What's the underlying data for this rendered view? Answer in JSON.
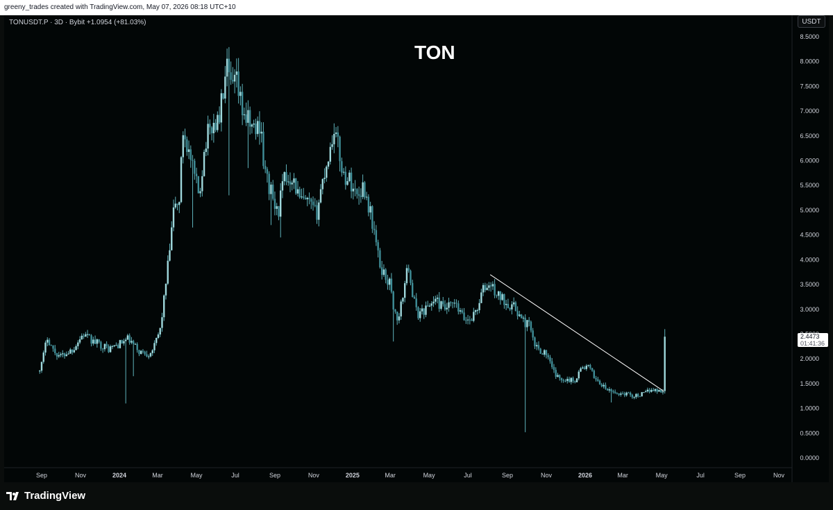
{
  "header": {
    "credit": "greeny_trades created with TradingView.com, May 07, 2026 08:18 UTC+10"
  },
  "symbol_info": "TONUSDT.P · 3D · Bybit  +1.0954 (+81.03%)",
  "currency_button": "USDT",
  "last_price": {
    "price": "2.4473",
    "countdown": "01:41:36"
  },
  "brand": {
    "name": "TradingView"
  },
  "colors": {
    "background": "#020606",
    "candle": "#9fd8dc",
    "wick": "#5fb3bb",
    "trendline": "#ffffff",
    "text": "#d1d4dc"
  },
  "chart_data": {
    "type": "candlestick",
    "title": "TON",
    "x_ticks": [
      "Sep",
      "Nov",
      "2024",
      "Mar",
      "May",
      "Jul",
      "Sep",
      "Nov",
      "2025",
      "Mar",
      "May",
      "Jul",
      "Sep",
      "Nov",
      "2026",
      "Mar",
      "May",
      "Jul",
      "Sep",
      "Nov"
    ],
    "y_ticks": [
      "0.0000",
      "0.5000",
      "1.0000",
      "1.5000",
      "2.0000",
      "2.5000",
      "3.0000",
      "3.5000",
      "4.0000",
      "4.5000",
      "5.0000",
      "5.5000",
      "6.0000",
      "6.5000",
      "7.0000",
      "7.5000",
      "8.0000",
      "8.5000"
    ],
    "ylim": [
      0,
      8.6
    ],
    "anchors": [
      {
        "date": "2023-08-26",
        "price": 1.75
      },
      {
        "date": "2023-09-01",
        "price": 1.9
      },
      {
        "date": "2023-09-10",
        "price": 2.45
      },
      {
        "date": "2023-09-20",
        "price": 2.15
      },
      {
        "date": "2023-10-01",
        "price": 2.05
      },
      {
        "date": "2023-10-20",
        "price": 2.2
      },
      {
        "date": "2023-11-05",
        "price": 2.5
      },
      {
        "date": "2023-11-20",
        "price": 2.35
      },
      {
        "date": "2023-12-01",
        "price": 2.3
      },
      {
        "date": "2023-12-15",
        "price": 2.2
      },
      {
        "date": "2024-01-01",
        "price": 2.3
      },
      {
        "date": "2024-01-15",
        "price": 2.4
      },
      {
        "date": "2024-02-01",
        "price": 2.15
      },
      {
        "date": "2024-02-15",
        "price": 2.1
      },
      {
        "date": "2024-02-25",
        "price": 2.25
      },
      {
        "date": "2024-03-05",
        "price": 2.6
      },
      {
        "date": "2024-03-12",
        "price": 3.3
      },
      {
        "date": "2024-03-20",
        "price": 4.2
      },
      {
        "date": "2024-03-28",
        "price": 5.2
      },
      {
        "date": "2024-04-03",
        "price": 5.0
      },
      {
        "date": "2024-04-10",
        "price": 6.6
      },
      {
        "date": "2024-04-15",
        "price": 6.4
      },
      {
        "date": "2024-04-25",
        "price": 5.8
      },
      {
        "date": "2024-05-05",
        "price": 5.3
      },
      {
        "date": "2024-05-15",
        "price": 6.4
      },
      {
        "date": "2024-05-25",
        "price": 6.7
      },
      {
        "date": "2024-06-05",
        "price": 6.8
      },
      {
        "date": "2024-06-12",
        "price": 7.4
      },
      {
        "date": "2024-06-18",
        "price": 7.8
      },
      {
        "date": "2024-06-25",
        "price": 7.4
      },
      {
        "date": "2024-07-02",
        "price": 7.6
      },
      {
        "date": "2024-07-10",
        "price": 7.1
      },
      {
        "date": "2024-07-20",
        "price": 6.8
      },
      {
        "date": "2024-08-01",
        "price": 6.6
      },
      {
        "date": "2024-08-10",
        "price": 6.8
      },
      {
        "date": "2024-08-15",
        "price": 5.8
      },
      {
        "date": "2024-08-25",
        "price": 5.4
      },
      {
        "date": "2024-09-05",
        "price": 4.9
      },
      {
        "date": "2024-09-15",
        "price": 5.6
      },
      {
        "date": "2024-09-28",
        "price": 5.7
      },
      {
        "date": "2024-10-10",
        "price": 5.2
      },
      {
        "date": "2024-10-25",
        "price": 5.1
      },
      {
        "date": "2024-11-05",
        "price": 4.9
      },
      {
        "date": "2024-11-12",
        "price": 5.4
      },
      {
        "date": "2024-11-20",
        "price": 5.9
      },
      {
        "date": "2024-11-28",
        "price": 6.3
      },
      {
        "date": "2024-12-03",
        "price": 6.7
      },
      {
        "date": "2024-12-10",
        "price": 6.2
      },
      {
        "date": "2024-12-18",
        "price": 5.7
      },
      {
        "date": "2024-12-28",
        "price": 5.6
      },
      {
        "date": "2025-01-08",
        "price": 5.3
      },
      {
        "date": "2025-01-18",
        "price": 5.5
      },
      {
        "date": "2025-01-28",
        "price": 5.0
      },
      {
        "date": "2025-02-05",
        "price": 4.5
      },
      {
        "date": "2025-02-12",
        "price": 3.9
      },
      {
        "date": "2025-02-20",
        "price": 3.7
      },
      {
        "date": "2025-03-01",
        "price": 3.5
      },
      {
        "date": "2025-03-08",
        "price": 2.9
      },
      {
        "date": "2025-03-15",
        "price": 2.8
      },
      {
        "date": "2025-03-22",
        "price": 3.4
      },
      {
        "date": "2025-03-30",
        "price": 3.9
      },
      {
        "date": "2025-04-05",
        "price": 3.3
      },
      {
        "date": "2025-04-12",
        "price": 2.9
      },
      {
        "date": "2025-04-25",
        "price": 3.0
      },
      {
        "date": "2025-05-10",
        "price": 3.2
      },
      {
        "date": "2025-05-25",
        "price": 3.0
      },
      {
        "date": "2025-06-10",
        "price": 3.1
      },
      {
        "date": "2025-06-25",
        "price": 2.8
      },
      {
        "date": "2025-07-05",
        "price": 2.8
      },
      {
        "date": "2025-07-15",
        "price": 3.0
      },
      {
        "date": "2025-07-25",
        "price": 3.4
      },
      {
        "date": "2025-08-05",
        "price": 3.5
      },
      {
        "date": "2025-08-15",
        "price": 3.3
      },
      {
        "date": "2025-08-25",
        "price": 3.2
      },
      {
        "date": "2025-09-05",
        "price": 3.1
      },
      {
        "date": "2025-09-15",
        "price": 3.0
      },
      {
        "date": "2025-09-25",
        "price": 2.75
      },
      {
        "date": "2025-10-05",
        "price": 2.7
      },
      {
        "date": "2025-10-12",
        "price": 2.3
      },
      {
        "date": "2025-10-20",
        "price": 2.2
      },
      {
        "date": "2025-11-01",
        "price": 2.1
      },
      {
        "date": "2025-11-10",
        "price": 1.8
      },
      {
        "date": "2025-11-20",
        "price": 1.6
      },
      {
        "date": "2025-12-01",
        "price": 1.6
      },
      {
        "date": "2025-12-15",
        "price": 1.55
      },
      {
        "date": "2025-12-25",
        "price": 1.8
      },
      {
        "date": "2026-01-05",
        "price": 1.85
      },
      {
        "date": "2026-01-15",
        "price": 1.65
      },
      {
        "date": "2026-01-28",
        "price": 1.45
      },
      {
        "date": "2026-02-08",
        "price": 1.35
      },
      {
        "date": "2026-02-20",
        "price": 1.3
      },
      {
        "date": "2026-03-05",
        "price": 1.3
      },
      {
        "date": "2026-03-20",
        "price": 1.25
      },
      {
        "date": "2026-04-05",
        "price": 1.3
      },
      {
        "date": "2026-04-15",
        "price": 1.4
      },
      {
        "date": "2026-04-25",
        "price": 1.35
      },
      {
        "date": "2026-05-03",
        "price": 1.35
      }
    ],
    "last_candle": {
      "date": "2026-05-06",
      "open": 1.35,
      "high": 2.6,
      "low": 1.3,
      "close": 2.4473
    },
    "wick_spikes": [
      {
        "date": "2024-01-10",
        "low": 1.1
      },
      {
        "date": "2024-01-24",
        "low": 1.65
      },
      {
        "date": "2024-04-24",
        "low": 4.65
      },
      {
        "date": "2024-06-22",
        "low": 5.3
      },
      {
        "date": "2024-07-20",
        "low": 5.85
      },
      {
        "date": "2024-08-27",
        "low": 4.7
      },
      {
        "date": "2024-09-09",
        "low": 4.45
      },
      {
        "date": "2025-03-07",
        "low": 2.35
      },
      {
        "date": "2025-09-28",
        "low": 0.52
      },
      {
        "date": "2026-02-10",
        "low": 1.12
      }
    ],
    "trendline": {
      "start": {
        "date": "2025-08-05",
        "price": 3.7
      },
      "end": {
        "date": "2026-05-04",
        "price": 1.35
      }
    }
  }
}
